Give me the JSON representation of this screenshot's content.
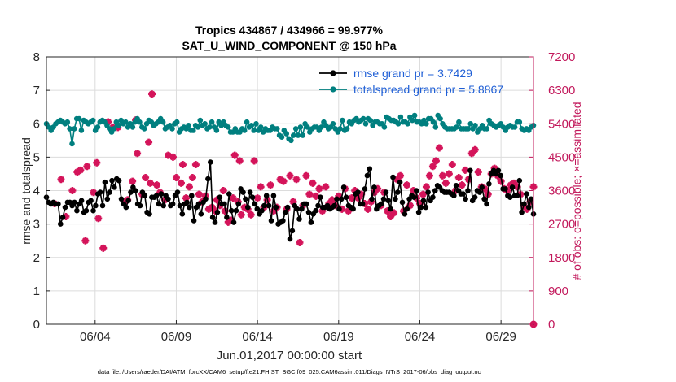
{
  "chart_data": {
    "type": "line",
    "title": "Tropics 434867 / 434966 = 99.977%",
    "subtitle": "SAT_U_WIND_COMPONENT @ 150 hPa",
    "xlabel": "Jun.01,2017 00:00:00 start",
    "ylabel": "rmse and totalspread",
    "ylabel_right": "# of obs: o=possible; ×=assimilated",
    "footer": "data file: /Users/raeder/DAI/ATM_forcXX/CAM6_setup/f.e21.FHIST_BGC.f09_025.CAM6assim.011/Diags_NTrS_2017-06/obs_diag_output.nc",
    "xlim": [
      1,
      31
    ],
    "ylim": [
      0,
      8
    ],
    "ylim_right": [
      0,
      7200
    ],
    "x_ticks": [
      4,
      9,
      14,
      19,
      24,
      29
    ],
    "x_tick_labels": [
      "06/04",
      "06/09",
      "06/14",
      "06/19",
      "06/24",
      "06/29"
    ],
    "y_ticks": [
      0,
      1,
      2,
      3,
      4,
      5,
      6,
      7,
      8
    ],
    "y_tick_labels": [
      "0",
      "1",
      "2",
      "3",
      "4",
      "5",
      "6",
      "7",
      "8"
    ],
    "y_right_ticks": [
      0,
      900,
      1800,
      2700,
      3600,
      4500,
      5400,
      6300,
      7200
    ],
    "y_right_tick_labels": [
      "0",
      "900",
      "1800",
      "2700",
      "3600",
      "4500",
      "5400",
      "6300",
      "7200"
    ],
    "grid": true,
    "legend": [
      "rmse grand pr = 3.7429",
      "totalspread grand pr = 5.8867"
    ],
    "legend_position": "top-right",
    "colors": {
      "rmse": "#000000",
      "spread": "#007f7f",
      "obs": "#d4145a",
      "right_axis": "#c2185b",
      "legend_text": "#1f5fd6",
      "grid": "#dcdcdc"
    },
    "series": [
      {
        "name": "rmse",
        "values": [
          3.8,
          3.65,
          3.6,
          3.65,
          3.6,
          3.6,
          3.0,
          3.2,
          3.5,
          3.65,
          3.65,
          3.55,
          3.65,
          3.4,
          3.6,
          3.7,
          3.35,
          3.4,
          3.65,
          3.7,
          3.4,
          3.55,
          3.9,
          3.95,
          3.55,
          4.25,
          3.75,
          3.95,
          4.3,
          4.1,
          4.35,
          4.3,
          3.75,
          3.6,
          3.5,
          3.7,
          3.95,
          4.1,
          4.0,
          3.6,
          3.55,
          3.95,
          3.85,
          3.35,
          3.3,
          3.8,
          3.8,
          3.85,
          3.6,
          3.9,
          3.55,
          3.85,
          3.75,
          3.55,
          3.6,
          3.85,
          3.95,
          3.55,
          3.3,
          3.6,
          3.65,
          3.5,
          3.85,
          3.1,
          3.5,
          3.6,
          3.3,
          3.65,
          3.75,
          4.35,
          4.85,
          3.2,
          3.05,
          3.35,
          3.8,
          3.6,
          3.6,
          3.2,
          3.9,
          3.4,
          3.05,
          3.4,
          3.6,
          4.05,
          3.95,
          3.75,
          3.5,
          3.95,
          3.8,
          3.6,
          3.45,
          3.3,
          3.4,
          3.55,
          3.85,
          3.55,
          3.1,
          3.85,
          3.5,
          3.0,
          3.05,
          3.1,
          3.35,
          3.5,
          2.55,
          2.8,
          3.55,
          3.45,
          3.15,
          3.45,
          3.6,
          3.6,
          3.35,
          3.05,
          3.3,
          3.4,
          3.55,
          3.8,
          3.5,
          3.5,
          3.55,
          3.45,
          3.5,
          3.55,
          3.75,
          3.45,
          3.75,
          4.1,
          3.8,
          3.55,
          3.5,
          3.45,
          3.9,
          3.95,
          3.6,
          3.6,
          4.05,
          4.45,
          4.65,
          3.75,
          4.1,
          3.45,
          3.55,
          3.6,
          3.75,
          3.95,
          3.7,
          3.45,
          4.4,
          3.75,
          3.95,
          4.25,
          3.65,
          3.3,
          3.45,
          3.75,
          3.85,
          3.8,
          4.0,
          3.35,
          3.5,
          3.7,
          3.5,
          3.95,
          3.7,
          3.8,
          4.0,
          4.15,
          4.1,
          4.0,
          3.95,
          3.95,
          3.95,
          3.9,
          3.85,
          4.15,
          4.0,
          3.9,
          3.9,
          3.75,
          4.0,
          4.6,
          3.7,
          3.8,
          4.0,
          3.95,
          4.1,
          3.75,
          3.6,
          4.2,
          4.5,
          4.6,
          4.5,
          4.6,
          4.45,
          4.05,
          4.05,
          3.85,
          3.8,
          4.1,
          3.85,
          3.85,
          4.3,
          3.35,
          3.6,
          3.9,
          3.5,
          3.75,
          3.3
        ]
      },
      {
        "name": "totalspread",
        "values": [
          6.0,
          5.9,
          5.8,
          5.9,
          6.0,
          6.05,
          6.1,
          6.05,
          6.0,
          6.05,
          5.85,
          5.4,
          5.85,
          6.15,
          6.15,
          5.8,
          6.1,
          6.05,
          6.0,
          6.05,
          6.1,
          5.8,
          5.9,
          6.05,
          6.1,
          6.05,
          5.95,
          5.85,
          5.75,
          5.85,
          6.05,
          5.95,
          6.1,
          6.0,
          6.05,
          5.9,
          6.0,
          5.9,
          6.05,
          6.15,
          6.05,
          5.9,
          5.85,
          6.0,
          6.1,
          6.05,
          5.95,
          6.0,
          6.05,
          6.15,
          6.05,
          5.85,
          5.9,
          5.95,
          5.85,
          6.0,
          6.05,
          5.75,
          5.85,
          5.9,
          5.85,
          5.95,
          5.8,
          5.8,
          5.95,
          5.9,
          6.1,
          5.95,
          6.0,
          5.85,
          5.9,
          6.05,
          5.9,
          5.8,
          6.05,
          5.95,
          6.05,
          5.95,
          5.9,
          5.75,
          5.75,
          5.85,
          5.75,
          5.75,
          5.85,
          5.8,
          6.05,
          5.9,
          5.95,
          5.8,
          6.0,
          5.8,
          5.9,
          5.75,
          5.85,
          5.8,
          5.8,
          5.9,
          5.85,
          5.85,
          5.65,
          5.6,
          5.8,
          5.7,
          5.55,
          5.5,
          5.65,
          5.85,
          5.65,
          5.9,
          5.65,
          6.0,
          5.9,
          5.75,
          5.85,
          5.9,
          5.9,
          5.8,
          5.9,
          6.05,
          5.95,
          5.85,
          5.9,
          6.0,
          5.85,
          5.75,
          5.85,
          6.1,
          5.8,
          5.85,
          6.05,
          6.0,
          6.1,
          6.15,
          6.05,
          6.1,
          6.15,
          6.0,
          6.15,
          6.1,
          5.95,
          6.05,
          6.05,
          6.0,
          6.0,
          5.9,
          6.2,
          6.15,
          6.1,
          6.1,
          6.05,
          6.0,
          6.2,
          6.05,
          6.05,
          6.0,
          6.2,
          6.1,
          6.25,
          6.05,
          6.05,
          6.0,
          6.1,
          6.0,
          6.15,
          6.15,
          6.05,
          5.9,
          6.25,
          6.15,
          6.0,
          5.9,
          5.85,
          5.85,
          5.85,
          5.85,
          5.9,
          6.05,
          5.85,
          5.85,
          5.85,
          5.85,
          6.0,
          5.85,
          5.95,
          5.75,
          5.85,
          5.95,
          5.85,
          5.85,
          6.1,
          6.0,
          5.95,
          5.9,
          5.95,
          6.0,
          5.9,
          5.8,
          5.9,
          5.95,
          5.9,
          5.9,
          6.05,
          6.05,
          5.85,
          5.8,
          5.85,
          5.8,
          5.9,
          5.95
        ]
      }
    ],
    "obs_assimilated": [
      {
        "x": 1.5,
        "y": 3250
      },
      {
        "x": 1.9,
        "y": 3900
      },
      {
        "x": 2.2,
        "y": 2900
      },
      {
        "x": 2.6,
        "y": 3600
      },
      {
        "x": 2.9,
        "y": 4100
      },
      {
        "x": 3.1,
        "y": 4150
      },
      {
        "x": 3.4,
        "y": 2250
      },
      {
        "x": 3.5,
        "y": 4250
      },
      {
        "x": 3.9,
        "y": 3550
      },
      {
        "x": 4.1,
        "y": 4350
      },
      {
        "x": 4.2,
        "y": 2850
      },
      {
        "x": 4.5,
        "y": 2050
      },
      {
        "x": 4.8,
        "y": 5450
      },
      {
        "x": 5.1,
        "y": 5300
      },
      {
        "x": 5.4,
        "y": 5300
      },
      {
        "x": 5.8,
        "y": 3300
      },
      {
        "x": 6.0,
        "y": 3350
      },
      {
        "x": 6.3,
        "y": 3850
      },
      {
        "x": 6.5,
        "y": 5500
      },
      {
        "x": 6.6,
        "y": 4600
      },
      {
        "x": 6.9,
        "y": 3500
      },
      {
        "x": 7.1,
        "y": 3950
      },
      {
        "x": 7.3,
        "y": 4900
      },
      {
        "x": 7.4,
        "y": 3800
      },
      {
        "x": 7.5,
        "y": 6200
      },
      {
        "x": 7.8,
        "y": 3750
      },
      {
        "x": 8.0,
        "y": 3550
      },
      {
        "x": 8.3,
        "y": 3350
      },
      {
        "x": 8.5,
        "y": 4550
      },
      {
        "x": 8.8,
        "y": 4500
      },
      {
        "x": 9.0,
        "y": 3950
      },
      {
        "x": 9.3,
        "y": 3800
      },
      {
        "x": 9.4,
        "y": 4300
      },
      {
        "x": 9.6,
        "y": 3400
      },
      {
        "x": 9.8,
        "y": 3700
      },
      {
        "x": 10.0,
        "y": 3950
      },
      {
        "x": 10.2,
        "y": 4300
      },
      {
        "x": 10.4,
        "y": 3500
      },
      {
        "x": 10.6,
        "y": 3300
      },
      {
        "x": 10.8,
        "y": 3450
      },
      {
        "x": 11.0,
        "y": 3100
      },
      {
        "x": 11.2,
        "y": 3150
      },
      {
        "x": 11.4,
        "y": 3050
      },
      {
        "x": 11.5,
        "y": 3350
      },
      {
        "x": 11.7,
        "y": 3200
      },
      {
        "x": 11.9,
        "y": 3600
      },
      {
        "x": 12.0,
        "y": 3050
      },
      {
        "x": 12.2,
        "y": 2750
      },
      {
        "x": 12.4,
        "y": 2800
      },
      {
        "x": 12.5,
        "y": 3400
      },
      {
        "x": 12.6,
        "y": 4550
      },
      {
        "x": 12.8,
        "y": 3300
      },
      {
        "x": 12.9,
        "y": 4400
      },
      {
        "x": 13.0,
        "y": 2950
      },
      {
        "x": 13.2,
        "y": 3150
      },
      {
        "x": 13.4,
        "y": 3100
      },
      {
        "x": 13.6,
        "y": 2950
      },
      {
        "x": 13.8,
        "y": 4400
      },
      {
        "x": 14.0,
        "y": 3400
      },
      {
        "x": 14.2,
        "y": 3700
      },
      {
        "x": 14.4,
        "y": 3150
      },
      {
        "x": 14.6,
        "y": 3350
      },
      {
        "x": 14.8,
        "y": 3750
      },
      {
        "x": 15.0,
        "y": 3050
      },
      {
        "x": 15.2,
        "y": 3150
      },
      {
        "x": 15.4,
        "y": 3900
      },
      {
        "x": 15.6,
        "y": 3850
      },
      {
        "x": 15.8,
        "y": 3100
      },
      {
        "x": 16.0,
        "y": 4000
      },
      {
        "x": 16.2,
        "y": 3300
      },
      {
        "x": 16.4,
        "y": 3900
      },
      {
        "x": 16.6,
        "y": 2200
      },
      {
        "x": 16.8,
        "y": 3200
      },
      {
        "x": 17.0,
        "y": 4000
      },
      {
        "x": 17.2,
        "y": 3500
      },
      {
        "x": 17.4,
        "y": 3800
      },
      {
        "x": 17.6,
        "y": 3450
      },
      {
        "x": 17.8,
        "y": 3650
      },
      {
        "x": 18.0,
        "y": 3050
      },
      {
        "x": 18.2,
        "y": 3700
      },
      {
        "x": 18.4,
        "y": 3250
      },
      {
        "x": 18.6,
        "y": 3350
      },
      {
        "x": 18.8,
        "y": 3200
      },
      {
        "x": 19.0,
        "y": 3450
      },
      {
        "x": 19.2,
        "y": 3100
      },
      {
        "x": 19.4,
        "y": 3650
      },
      {
        "x": 19.6,
        "y": 3050
      },
      {
        "x": 19.8,
        "y": 3400
      },
      {
        "x": 20.0,
        "y": 3600
      },
      {
        "x": 20.2,
        "y": 3400
      },
      {
        "x": 20.4,
        "y": 3500
      },
      {
        "x": 20.6,
        "y": 3250
      },
      {
        "x": 20.8,
        "y": 3100
      },
      {
        "x": 21.0,
        "y": 3300
      },
      {
        "x": 21.2,
        "y": 3550
      },
      {
        "x": 21.4,
        "y": 3650
      },
      {
        "x": 21.6,
        "y": 3200
      },
      {
        "x": 21.8,
        "y": 3550
      },
      {
        "x": 22.0,
        "y": 3050
      },
      {
        "x": 22.2,
        "y": 2900
      },
      {
        "x": 22.4,
        "y": 3000
      },
      {
        "x": 22.6,
        "y": 3900
      },
      {
        "x": 22.8,
        "y": 4000
      },
      {
        "x": 23.0,
        "y": 3050
      },
      {
        "x": 23.2,
        "y": 3750
      },
      {
        "x": 23.4,
        "y": 3200
      },
      {
        "x": 23.6,
        "y": 3600
      },
      {
        "x": 23.8,
        "y": 3400
      },
      {
        "x": 24.0,
        "y": 3250
      },
      {
        "x": 24.2,
        "y": 3500
      },
      {
        "x": 24.4,
        "y": 3700
      },
      {
        "x": 24.6,
        "y": 4000
      },
      {
        "x": 24.8,
        "y": 4250
      },
      {
        "x": 25.0,
        "y": 4400
      },
      {
        "x": 25.2,
        "y": 4750
      },
      {
        "x": 25.4,
        "y": 4000
      },
      {
        "x": 25.6,
        "y": 3800
      },
      {
        "x": 25.8,
        "y": 4050
      },
      {
        "x": 26.0,
        "y": 4300
      },
      {
        "x": 26.2,
        "y": 3600
      },
      {
        "x": 26.4,
        "y": 3950
      },
      {
        "x": 26.6,
        "y": 3750
      },
      {
        "x": 26.8,
        "y": 4150
      },
      {
        "x": 27.0,
        "y": 3900
      },
      {
        "x": 27.2,
        "y": 4600
      },
      {
        "x": 27.4,
        "y": 4700
      },
      {
        "x": 27.6,
        "y": 4100
      },
      {
        "x": 27.8,
        "y": 3700
      },
      {
        "x": 28.0,
        "y": 3650
      },
      {
        "x": 28.2,
        "y": 3500
      },
      {
        "x": 28.4,
        "y": 4050
      },
      {
        "x": 28.6,
        "y": 4200
      },
      {
        "x": 28.8,
        "y": 4000
      },
      {
        "x": 29.0,
        "y": 3850
      },
      {
        "x": 29.2,
        "y": 3650
      },
      {
        "x": 29.4,
        "y": 3600
      },
      {
        "x": 29.6,
        "y": 3750
      },
      {
        "x": 29.8,
        "y": 3800
      },
      {
        "x": 30.0,
        "y": 3700
      },
      {
        "x": 30.2,
        "y": 3500
      },
      {
        "x": 30.4,
        "y": 3200
      },
      {
        "x": 30.6,
        "y": 3100
      },
      {
        "x": 30.8,
        "y": 3300
      },
      {
        "x": 31.0,
        "y": 3700
      }
    ],
    "obs_possible": [
      {
        "x": 31.0,
        "y": 0
      }
    ]
  }
}
